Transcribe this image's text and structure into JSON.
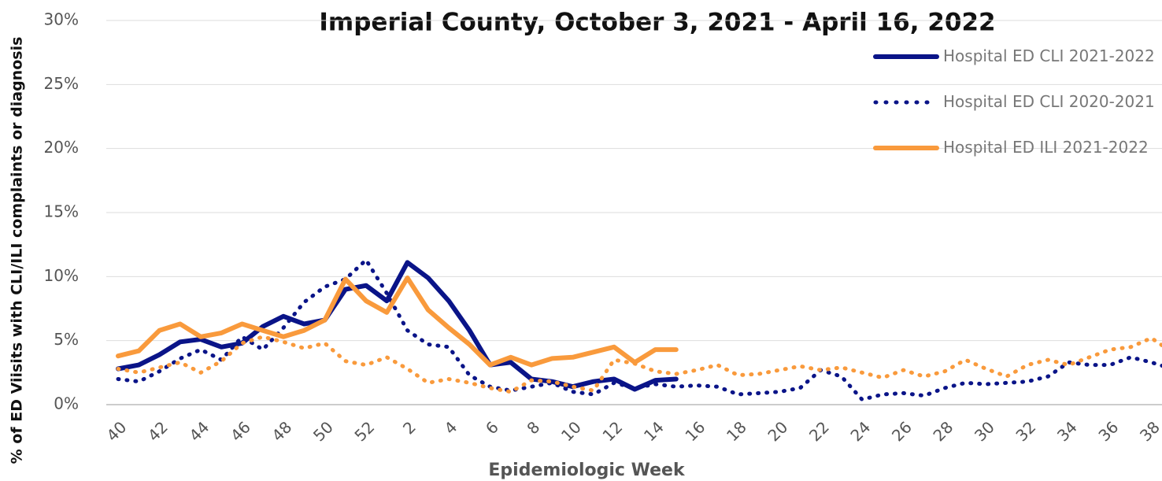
{
  "chart_data": {
    "type": "line",
    "title": "Imperial County, October 3, 2021 - April 16, 2022",
    "x_label": "Epidemiologic Week",
    "y_label": "% of ED Viisits with CLI/ILI  complaints or diagnosis",
    "categories": [
      "40",
      null,
      "42",
      null,
      "44",
      null,
      "46",
      null,
      "48",
      null,
      "50",
      null,
      "52",
      null,
      "2",
      null,
      "4",
      null,
      "6",
      null,
      "8",
      null,
      "10",
      null,
      "12",
      null,
      "14",
      null,
      "16",
      null,
      "18",
      null,
      "20",
      null,
      "22",
      null,
      "24",
      null,
      "26",
      null,
      "28",
      null,
      "30",
      null,
      "32",
      null,
      "34",
      null,
      "36",
      null,
      "38",
      null
    ],
    "ylim": [
      0,
      30
    ],
    "yticks": [
      {
        "value": 0,
        "label": "0%"
      },
      {
        "value": 5,
        "label": "5%"
      },
      {
        "value": 10,
        "label": "10%"
      },
      {
        "value": 15,
        "label": "15%"
      },
      {
        "value": 20,
        "label": "20%"
      },
      {
        "value": 25,
        "label": "25%"
      },
      {
        "value": 30,
        "label": "30%"
      }
    ],
    "grid": true,
    "legend": "upper right",
    "series": [
      {
        "name": "Hospital ED CLI 2021-2022",
        "color": "#0a1488",
        "style": "solid",
        "values": [
          2.8,
          3.1,
          3.9,
          4.9,
          5.1,
          4.5,
          4.8,
          6.1,
          6.9,
          6.3,
          6.6,
          9.0,
          9.3,
          8.1,
          11.1,
          9.9,
          8.1,
          5.8,
          3.1,
          3.3,
          2.0,
          1.8,
          1.4,
          1.8,
          2.0,
          1.2,
          1.9,
          2.0,
          null,
          null,
          null,
          null,
          null,
          null,
          null,
          null,
          null,
          null,
          null,
          null,
          null,
          null,
          null,
          null,
          null,
          null,
          null,
          null,
          null,
          null,
          null,
          null
        ]
      },
      {
        "name": "Hospital ED CLI 2020-2021",
        "color": "#0a1488",
        "style": "dotted",
        "values": [
          2.0,
          1.8,
          2.6,
          3.6,
          4.3,
          3.5,
          5.3,
          4.3,
          6.0,
          8.0,
          9.2,
          9.8,
          11.3,
          8.7,
          5.8,
          4.7,
          4.5,
          2.3,
          1.4,
          1.1,
          1.4,
          1.7,
          1.0,
          0.8,
          1.7,
          1.3,
          1.6,
          1.4,
          1.5,
          1.4,
          0.8,
          0.9,
          1.0,
          1.3,
          2.7,
          2.2,
          0.4,
          0.8,
          0.9,
          0.7,
          1.3,
          1.7,
          1.6,
          1.7,
          1.8,
          2.2,
          3.3,
          3.1,
          3.1,
          3.7,
          3.3,
          2.8
        ]
      },
      {
        "name": "Hospital ED ILI 2021-2022",
        "color": "#f99a3c",
        "style": "solid",
        "values": [
          3.8,
          4.2,
          5.8,
          6.3,
          5.3,
          5.6,
          6.3,
          5.8,
          5.3,
          5.8,
          6.6,
          9.8,
          8.1,
          7.2,
          9.9,
          7.4,
          6.0,
          4.7,
          3.1,
          3.7,
          3.1,
          3.6,
          3.7,
          4.1,
          4.5,
          3.3,
          4.3,
          4.3,
          null,
          null,
          null,
          null,
          null,
          null,
          null,
          null,
          null,
          null,
          null,
          null,
          null,
          null,
          null,
          null,
          null,
          null,
          null,
          null,
          null,
          null,
          null,
          null
        ]
      },
      {
        "color": "#f99a3c",
        "style": "dotted",
        "values": [
          2.8,
          2.5,
          2.9,
          3.3,
          2.5,
          3.4,
          4.8,
          5.3,
          4.9,
          4.4,
          4.8,
          3.4,
          3.1,
          3.7,
          2.8,
          1.7,
          2.0,
          1.7,
          1.3,
          1.0,
          1.9,
          1.8,
          1.4,
          1.1,
          3.5,
          3.2,
          2.6,
          2.4,
          2.7,
          3.1,
          2.3,
          2.4,
          2.7,
          3.0,
          2.7,
          2.9,
          2.5,
          2.1,
          2.7,
          2.2,
          2.6,
          3.5,
          2.8,
          2.2,
          3.1,
          3.5,
          3.1,
          3.7,
          4.3,
          4.5,
          5.2,
          4.1
        ]
      }
    ]
  }
}
